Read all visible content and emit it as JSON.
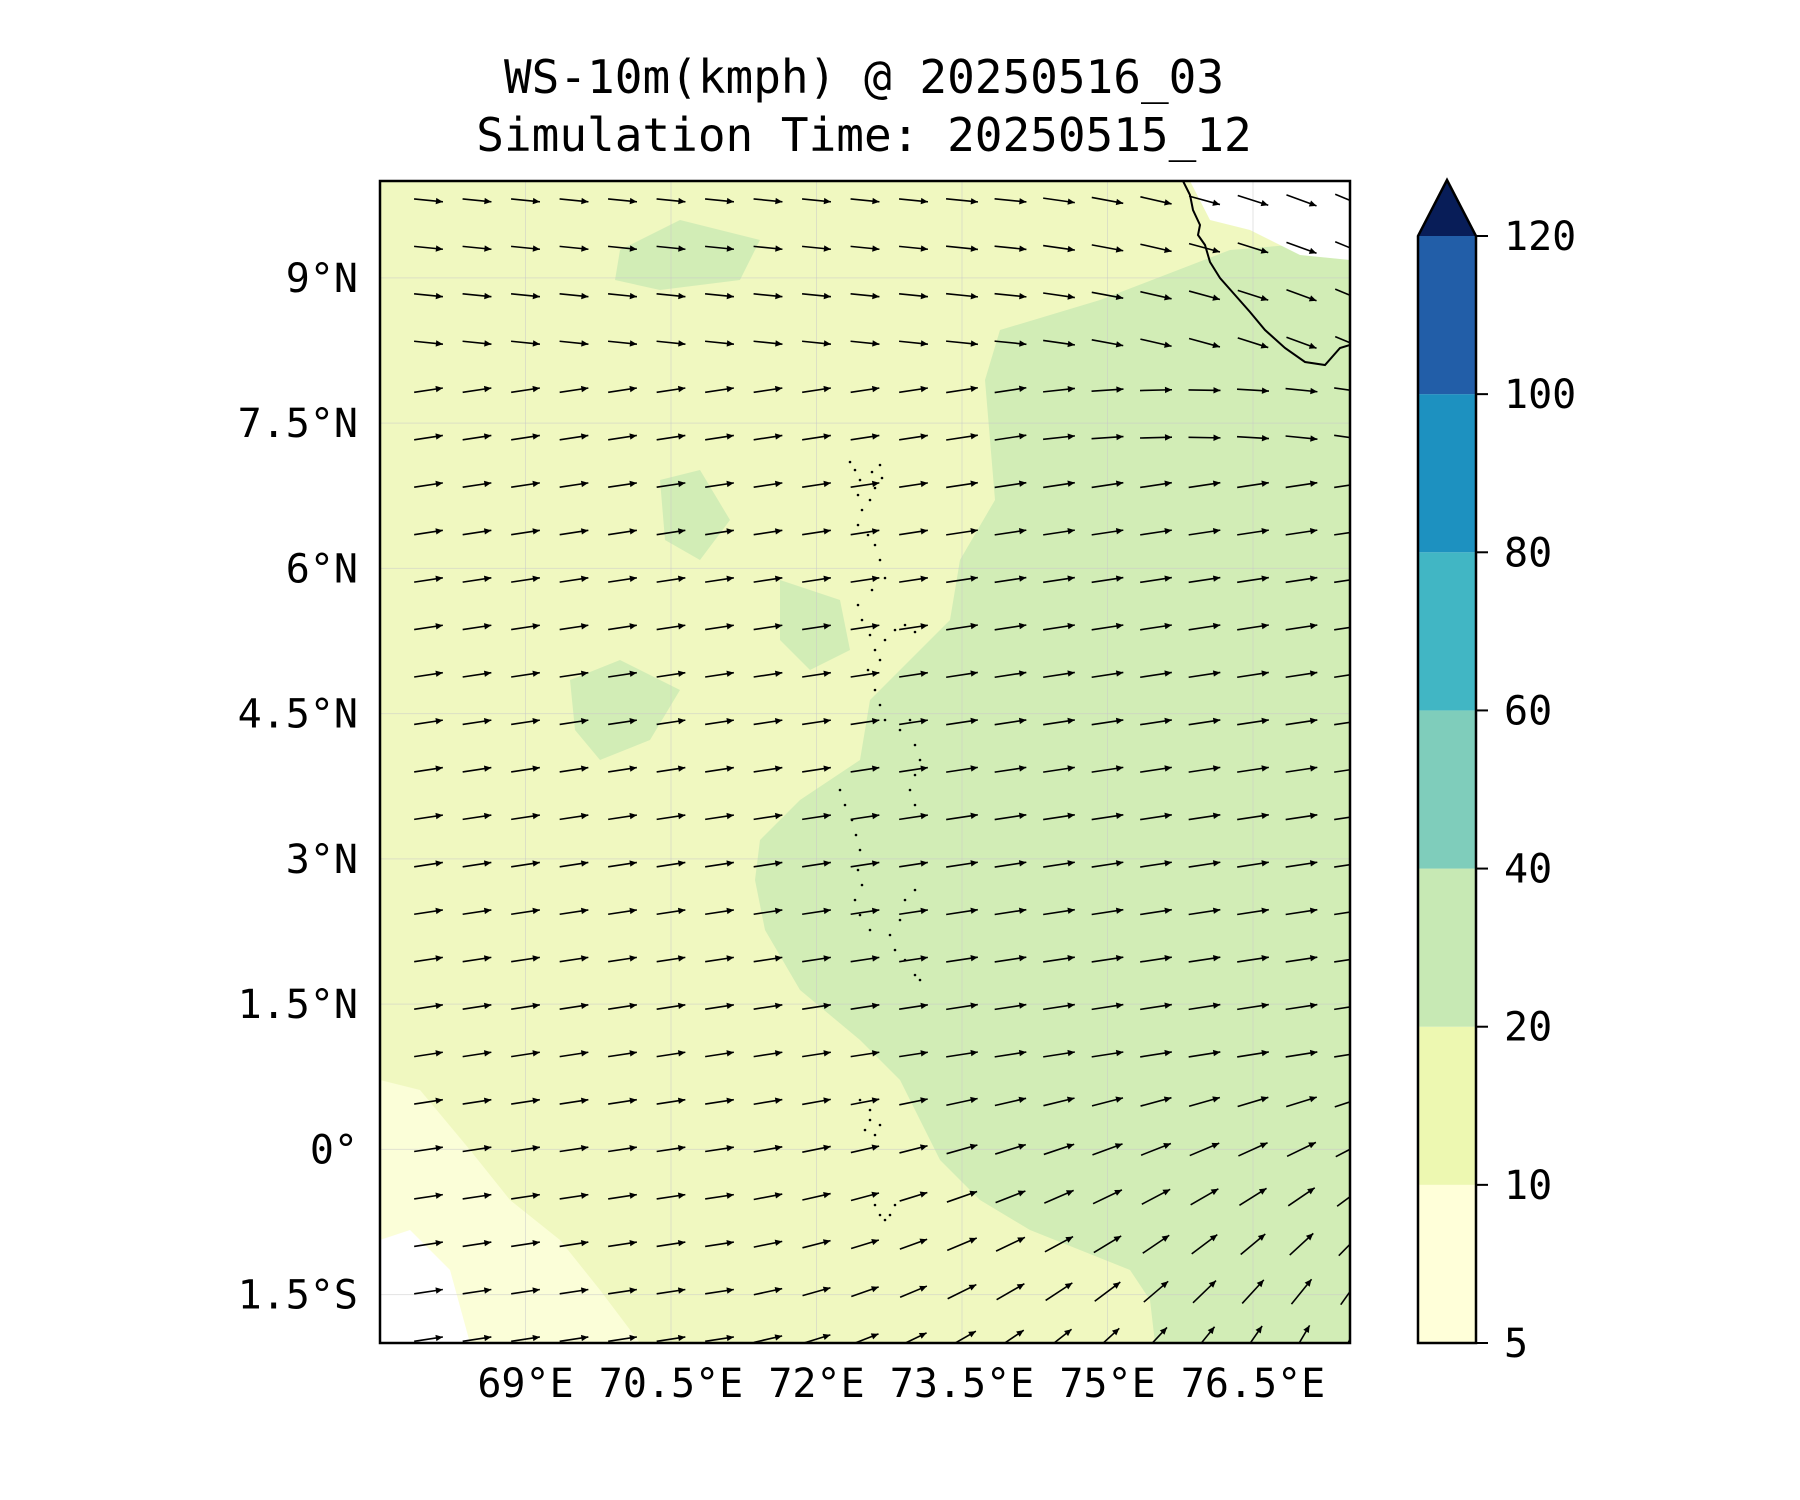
{
  "title": {
    "line1": "WS-10m(kmph) @ 20250516_03",
    "line2": "Simulation Time: 20250515_12"
  },
  "map": {
    "lon_range": [
      67.5,
      77.5
    ],
    "lat_range": [
      -2.0,
      10.0
    ],
    "x_ticks": [
      {
        "value": 69.0,
        "label": "69°E"
      },
      {
        "value": 70.5,
        "label": "70.5°E"
      },
      {
        "value": 72.0,
        "label": "72°E"
      },
      {
        "value": 73.5,
        "label": "73.5°E"
      },
      {
        "value": 75.0,
        "label": "75°E"
      },
      {
        "value": 76.5,
        "label": "76.5°E"
      }
    ],
    "y_ticks": [
      {
        "value": 9.0,
        "label": "9°N"
      },
      {
        "value": 7.5,
        "label": "7.5°N"
      },
      {
        "value": 6.0,
        "label": "6°N"
      },
      {
        "value": 4.5,
        "label": "4.5°N"
      },
      {
        "value": 3.0,
        "label": "3°N"
      },
      {
        "value": 1.5,
        "label": "1.5°N"
      },
      {
        "value": 0.0,
        "label": "0°"
      },
      {
        "value": -1.5,
        "label": "1.5°S"
      }
    ],
    "gridlines": true
  },
  "colorbar": {
    "levels": [
      5,
      10,
      20,
      40,
      60,
      80,
      100,
      120
    ],
    "labels": [
      "5",
      "10",
      "20",
      "40",
      "60",
      "80",
      "100",
      "120"
    ],
    "colors": [
      "#ffffd9",
      "#edf8b1",
      "#c7e9b4",
      "#7fcdbb",
      "#41b6c4",
      "#1d91c0",
      "#225ea8",
      "#0c2c84"
    ],
    "extend_color": "#081d58",
    "extend": "max"
  },
  "chart_data": {
    "type": "contour-field-with-vectors",
    "variable": "WS-10m(kmph)",
    "valid_time": "20250516_03",
    "simulation_time": "20250515_12",
    "fill_regions": [
      {
        "level_range": [
          5,
          10
        ],
        "description": "south-west corner (approx 67.5-69.5E, 2S-0N)"
      },
      {
        "level_range": [
          10,
          20
        ],
        "description": "western half of domain"
      },
      {
        "level_range": [
          20,
          40
        ],
        "description": "eastern half and patches west of 72E"
      }
    ],
    "wind_vectors": {
      "lon_start": 68.0,
      "lon_step": 0.5,
      "lon_count": 20,
      "lat_start": 9.8,
      "lat_step": -0.49,
      "lat_count": 25,
      "dominant_direction": "westerly, veering to south-westerly in the south-east"
    },
    "coastline": "south-west tip of India (north-east corner) and Maldives atolls along ~73.3E"
  }
}
